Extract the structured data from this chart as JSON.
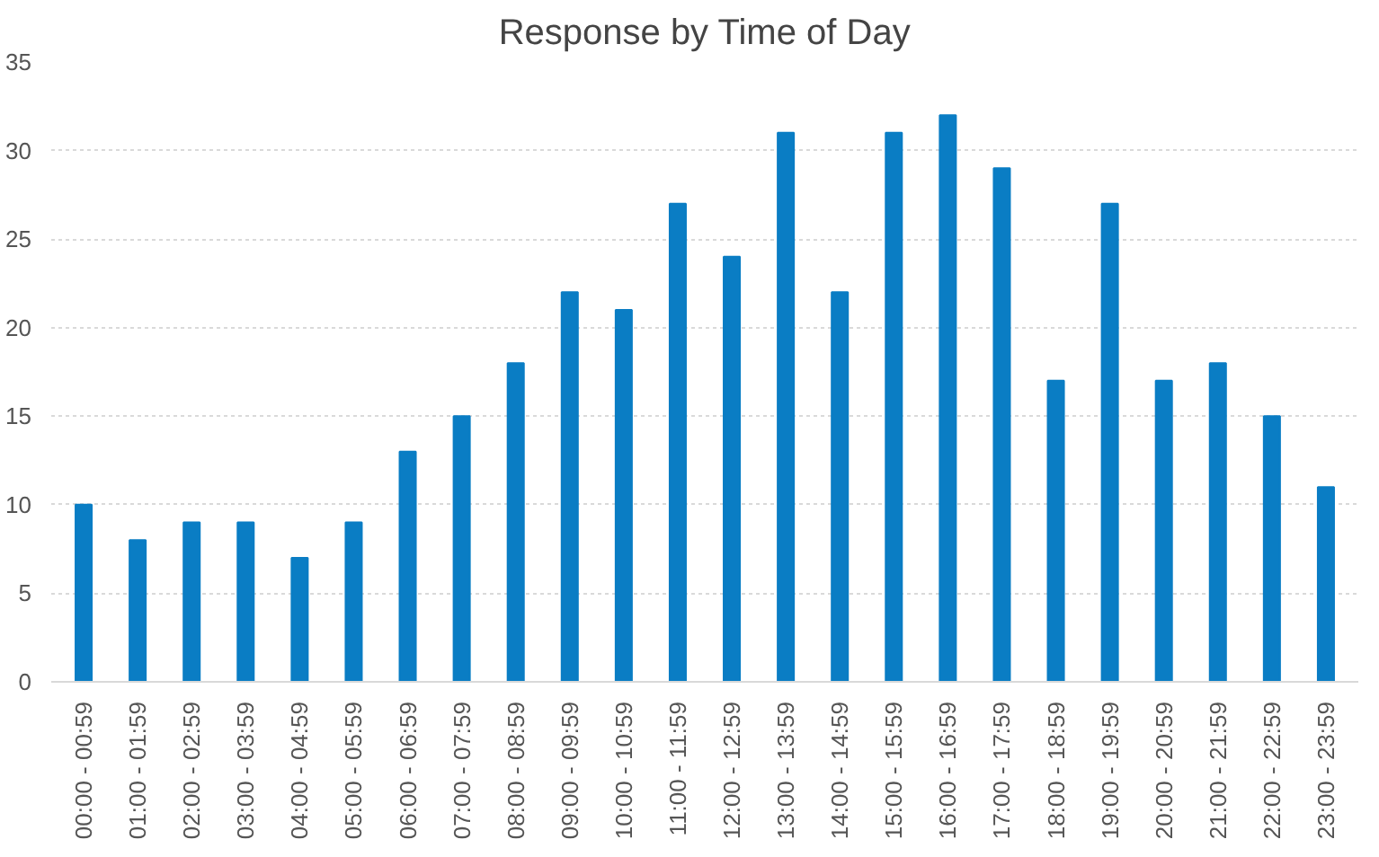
{
  "chart_data": {
    "type": "bar",
    "title": "Response by Time of Day",
    "categories": [
      "00:00 - 00:59",
      "01:00 - 01:59",
      "02:00 - 02:59",
      "03:00 - 03:59",
      "04:00 - 04:59",
      "05:00 - 05:59",
      "06:00 - 06:59",
      "07:00 - 07:59",
      "08:00 - 08:59",
      "09:00 - 09:59",
      "10:00 - 10:59",
      "11:00 - 11:59",
      "12:00 - 12:59",
      "13:00 - 13:59",
      "14:00 - 14:59",
      "15:00 - 15:59",
      "16:00 - 16:59",
      "17:00 - 17:59",
      "18:00 - 18:59",
      "19:00 - 19:59",
      "20:00 - 20:59",
      "21:00 - 21:59",
      "22:00 - 22:59",
      "23:00 - 23:59"
    ],
    "values": [
      10,
      8,
      9,
      9,
      7,
      9,
      13,
      15,
      18,
      22,
      21,
      27,
      24,
      31,
      22,
      31,
      32,
      29,
      17,
      27,
      17,
      18,
      15,
      11
    ],
    "color": "#0a7dc4",
    "ylim": [
      0,
      35
    ],
    "yticks": [
      0,
      5,
      10,
      15,
      20,
      25,
      30,
      35
    ],
    "grid": "y"
  }
}
